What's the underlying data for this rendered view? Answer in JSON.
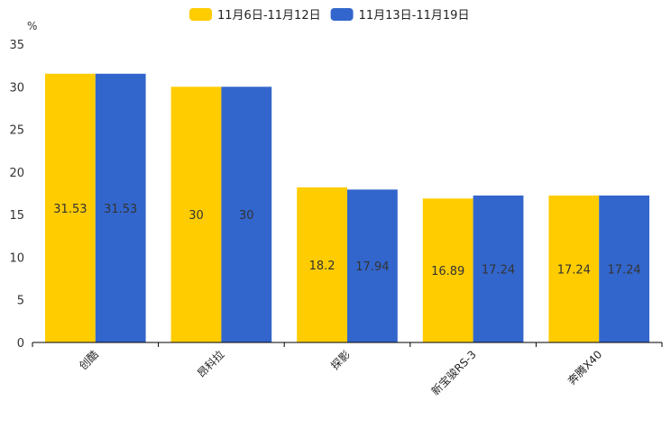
{
  "chart_data": {
    "type": "bar",
    "title": "",
    "ylabel": "%",
    "xlabel": "",
    "ylim": [
      0,
      35
    ],
    "yticks": [
      0,
      5,
      10,
      15,
      20,
      25,
      30,
      35
    ],
    "categories": [
      "创酷",
      "昂科拉",
      "探影",
      "新宝骏RS-3",
      "奔腾X40"
    ],
    "series": [
      {
        "name": "11月6日-11月12日",
        "color": "#FFCC00",
        "values": [
          31.53,
          30,
          18.2,
          16.89,
          17.24
        ]
      },
      {
        "name": "11月13日-11月19日",
        "color": "#3366CC",
        "values": [
          31.53,
          30,
          17.94,
          17.24,
          17.24
        ]
      }
    ],
    "legend_position": "top",
    "grid": false
  }
}
